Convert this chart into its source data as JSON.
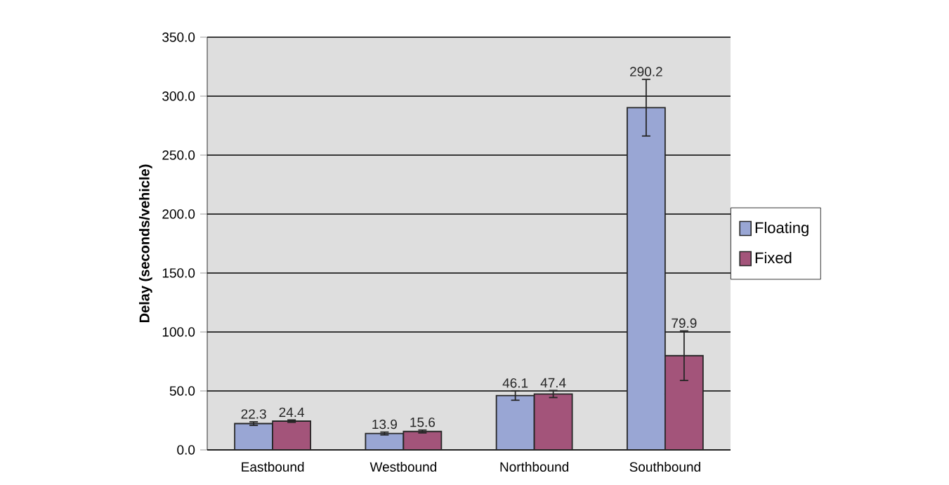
{
  "chart_data": {
    "type": "bar",
    "ylabel": "Delay (seconds/vehicle)",
    "categories": [
      "Eastbound",
      "Westbound",
      "Northbound",
      "Southbound"
    ],
    "series": [
      {
        "name": "Floating",
        "color": "#99a6d4",
        "values": [
          22.3,
          13.9,
          46.1,
          290.2
        ],
        "errors": [
          1.5,
          1.2,
          4,
          24
        ]
      },
      {
        "name": "Fixed",
        "color": "#a3547a",
        "values": [
          24.4,
          15.6,
          47.4,
          79.9
        ],
        "errors": [
          1,
          1.2,
          3,
          21
        ]
      }
    ],
    "ylim": [
      0,
      350
    ],
    "yticks": [
      {
        "value": 0,
        "label": "0.0"
      },
      {
        "value": 50,
        "label": "50.0"
      },
      {
        "value": 100,
        "label": "100.0"
      },
      {
        "value": 150,
        "label": "150.0"
      },
      {
        "value": 200,
        "label": "200.0"
      },
      {
        "value": 250,
        "label": "250.0"
      },
      {
        "value": 300,
        "label": "300.0"
      },
      {
        "value": 350,
        "label": "350.0"
      }
    ],
    "grid": "y",
    "legend": "right",
    "data_labels": true
  }
}
